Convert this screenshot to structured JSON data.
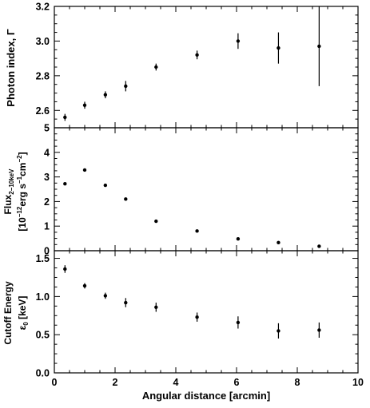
{
  "chart_data": [
    {
      "type": "scatter",
      "panel": "top",
      "ylabel": "Photon index, Γ",
      "xlim": [
        0,
        10
      ],
      "ylim": [
        2.5,
        3.2
      ],
      "yticks": [
        "2.6",
        "2.8",
        "3.0",
        "3.2"
      ],
      "error_bars": true,
      "series": [
        {
          "x": [
            0.35,
            1.0,
            1.68,
            2.35,
            3.35,
            4.7,
            6.05,
            7.38,
            8.72
          ],
          "y": [
            2.56,
            2.63,
            2.69,
            2.74,
            2.85,
            2.92,
            3.0,
            2.96,
            2.97
          ],
          "yerr": [
            0.02,
            0.02,
            0.02,
            0.03,
            0.02,
            0.025,
            0.045,
            0.09,
            0.23
          ]
        }
      ]
    },
    {
      "type": "scatter",
      "panel": "middle",
      "ylabel": "Flux2-10keV [10-12erg s-1cm-2]",
      "xlim": [
        0,
        10
      ],
      "ylim": [
        0,
        5
      ],
      "yticks": [
        "0",
        "1",
        "2",
        "3",
        "4",
        "5"
      ],
      "error_bars": false,
      "series": [
        {
          "x": [
            0.35,
            1.0,
            1.68,
            2.35,
            3.35,
            4.7,
            6.05,
            7.38,
            8.72
          ],
          "y": [
            2.72,
            3.28,
            2.66,
            2.1,
            1.2,
            0.8,
            0.48,
            0.33,
            0.18
          ]
        }
      ]
    },
    {
      "type": "scatter",
      "panel": "bottom",
      "ylabel": "Cutoff Energy ε0 [keV]",
      "xlabel": "Angular distance [arcmin]",
      "xlim": [
        0,
        10
      ],
      "ylim": [
        0,
        1.6
      ],
      "xticks": [
        "0",
        "2",
        "4",
        "6",
        "8",
        "10"
      ],
      "yticks": [
        "0.0",
        "0.5",
        "1.0",
        "1.5"
      ],
      "error_bars": true,
      "series": [
        {
          "x": [
            0.35,
            1.0,
            1.68,
            2.35,
            3.35,
            4.7,
            6.05,
            7.38,
            8.72
          ],
          "y": [
            1.36,
            1.14,
            1.01,
            0.92,
            0.86,
            0.73,
            0.66,
            0.55,
            0.56
          ],
          "yerr": [
            0.05,
            0.035,
            0.04,
            0.06,
            0.06,
            0.06,
            0.08,
            0.1,
            0.1
          ]
        }
      ]
    }
  ],
  "labels": {
    "top_ylabel": "Photon index, Γ",
    "mid_ylabel_flux": "Flux",
    "mid_ylabel_flux_sub": "2−10keV",
    "mid_ylabel_units_a": "[10",
    "mid_ylabel_units_exp1": "−12",
    "mid_ylabel_units_b": "erg s",
    "mid_ylabel_units_exp2": "−1",
    "mid_ylabel_units_c": "cm",
    "mid_ylabel_units_exp3": "−2",
    "mid_ylabel_units_d": "]",
    "bot_ylabel_line1": "Cutoff Energy",
    "bot_ylabel_eps": "ε",
    "bot_ylabel_eps_sub": "0",
    "bot_ylabel_units": " [keV]",
    "xlabel": "Angular distance [arcmin]"
  }
}
